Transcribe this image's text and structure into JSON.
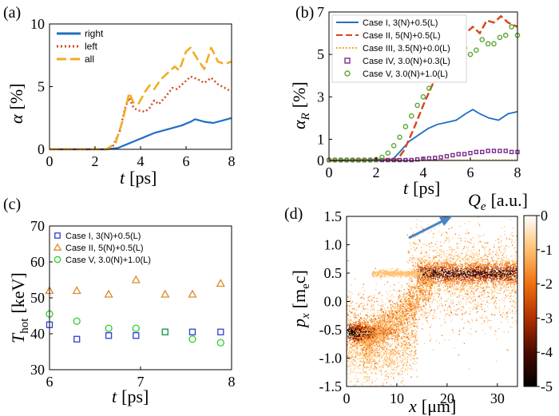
{
  "chart_data": [
    {
      "panel": "(a)",
      "type": "line",
      "xlabel_var": "t",
      "xlabel_unit": "[ps]",
      "ylabel_var": "α",
      "ylabel_unit": "[%]",
      "xlim": [
        0,
        8
      ],
      "ylim": [
        0,
        10
      ],
      "xticks": [
        "0",
        "2",
        "4",
        "6",
        "8"
      ],
      "yticks": [
        "0",
        "5",
        "10"
      ],
      "legend_position": "top-left",
      "series": [
        {
          "name": "right",
          "color": "#1f6fc1",
          "style": "solid",
          "points": [
            [
              0,
              0
            ],
            [
              2.5,
              0
            ],
            [
              3,
              0.1
            ],
            [
              3.4,
              0.4
            ],
            [
              3.8,
              0.7
            ],
            [
              4.2,
              1.0
            ],
            [
              4.6,
              1.3
            ],
            [
              5.0,
              1.5
            ],
            [
              5.4,
              1.7
            ],
            [
              5.8,
              1.9
            ],
            [
              6.2,
              2.2
            ],
            [
              6.4,
              2.4
            ],
            [
              6.8,
              2.2
            ],
            [
              7.2,
              2.1
            ],
            [
              7.6,
              2.3
            ],
            [
              8,
              2.5
            ]
          ]
        },
        {
          "name": "left",
          "color": "#d6461c",
          "style": "dotted",
          "points": [
            [
              0,
              0
            ],
            [
              2.5,
              0
            ],
            [
              2.8,
              0.3
            ],
            [
              3.1,
              1.5
            ],
            [
              3.3,
              3.2
            ],
            [
              3.5,
              4.1
            ],
            [
              3.7,
              3.3
            ],
            [
              3.9,
              3.1
            ],
            [
              4.2,
              3.0
            ],
            [
              4.4,
              3.3
            ],
            [
              4.6,
              3.9
            ],
            [
              4.8,
              3.6
            ],
            [
              5.1,
              4.2
            ],
            [
              5.4,
              4.9
            ],
            [
              5.6,
              4.8
            ],
            [
              5.9,
              5.3
            ],
            [
              6.2,
              5.8
            ],
            [
              6.5,
              5.6
            ],
            [
              6.8,
              5.3
            ],
            [
              7.1,
              5.7
            ],
            [
              7.4,
              5.2
            ],
            [
              7.7,
              4.9
            ],
            [
              8,
              4.6
            ]
          ]
        },
        {
          "name": "all",
          "color": "#f0ad24",
          "style": "dashed",
          "points": [
            [
              0,
              0
            ],
            [
              2.5,
              0
            ],
            [
              2.9,
              0.5
            ],
            [
              3.2,
              2.2
            ],
            [
              3.5,
              4.5
            ],
            [
              3.7,
              3.7
            ],
            [
              3.9,
              3.6
            ],
            [
              4.2,
              4.6
            ],
            [
              4.4,
              5.1
            ],
            [
              4.6,
              4.8
            ],
            [
              4.9,
              5.6
            ],
            [
              5.2,
              6.1
            ],
            [
              5.5,
              6.6
            ],
            [
              5.7,
              6.3
            ],
            [
              6.0,
              7.8
            ],
            [
              6.2,
              8.1
            ],
            [
              6.5,
              7.2
            ],
            [
              6.8,
              6.4
            ],
            [
              7.1,
              8.1
            ],
            [
              7.4,
              7.0
            ],
            [
              7.7,
              6.8
            ],
            [
              8,
              7.0
            ]
          ]
        }
      ]
    },
    {
      "panel": "(b)",
      "type": "line",
      "xlabel_var": "t",
      "xlabel_unit": "[ps]",
      "ylabel_var": "α",
      "ylabel_sub": "R",
      "ylabel_unit": "[%]",
      "xlim": [
        0,
        8
      ],
      "ylim": [
        0,
        7
      ],
      "xticks": [
        "0",
        "2",
        "4",
        "6",
        "8"
      ],
      "yticks": [
        "0",
        "1",
        "3",
        "5",
        "7"
      ],
      "legend_position": "top-left",
      "series": [
        {
          "name": "Case I, 3(N)+0.5(L)",
          "color": "#1f6fc1",
          "style": "solid",
          "points": [
            [
              0,
              0
            ],
            [
              2.7,
              0.05
            ],
            [
              3.0,
              0.4
            ],
            [
              3.4,
              0.9
            ],
            [
              3.8,
              1.2
            ],
            [
              4.2,
              1.5
            ],
            [
              4.6,
              1.7
            ],
            [
              5.0,
              1.8
            ],
            [
              5.4,
              1.9
            ],
            [
              5.8,
              2.2
            ],
            [
              6.1,
              2.4
            ],
            [
              6.4,
              2.2
            ],
            [
              6.8,
              2.0
            ],
            [
              7.2,
              1.9
            ],
            [
              7.6,
              2.2
            ],
            [
              8,
              2.3
            ]
          ]
        },
        {
          "name": "Case II, 5(N)+0.5(L)",
          "color": "#d6461c",
          "style": "dashed",
          "points": [
            [
              0,
              0
            ],
            [
              2.9,
              0.05
            ],
            [
              3.2,
              0.5
            ],
            [
              3.6,
              1.5
            ],
            [
              4.0,
              2.6
            ],
            [
              4.4,
              3.6
            ],
            [
              4.8,
              4.7
            ],
            [
              5.2,
              5.5
            ],
            [
              5.5,
              5.8
            ],
            [
              5.8,
              6.0
            ],
            [
              6.1,
              6.3
            ],
            [
              6.4,
              6.0
            ],
            [
              6.7,
              6.6
            ],
            [
              7.0,
              6.5
            ],
            [
              7.3,
              6.8
            ],
            [
              7.6,
              6.5
            ],
            [
              8,
              6.3
            ]
          ]
        },
        {
          "name": "Case III, 3.5(N)+0.0(L)",
          "color": "#f0ad24",
          "style": "dotted",
          "points": [
            [
              0,
              0
            ],
            [
              8,
              0.02
            ]
          ]
        },
        {
          "name": "Case IV, 3.0(N)+0.3(L)",
          "color": "#7b2c8f",
          "style": "square-markers",
          "points": [
            [
              0,
              0.02
            ],
            [
              0.25,
              0.02
            ],
            [
              0.5,
              0.02
            ],
            [
              0.75,
              0.02
            ],
            [
              1,
              0.02
            ],
            [
              1.25,
              0.02
            ],
            [
              1.5,
              0.02
            ],
            [
              1.75,
              0.02
            ],
            [
              2,
              0.02
            ],
            [
              2.25,
              0.02
            ],
            [
              2.5,
              0.02
            ],
            [
              2.75,
              0.02
            ],
            [
              3,
              0.02
            ],
            [
              3.25,
              0.02
            ],
            [
              3.5,
              0.02
            ],
            [
              3.75,
              0.05
            ],
            [
              4,
              0.08
            ],
            [
              4.25,
              0.1
            ],
            [
              4.5,
              0.12
            ],
            [
              4.75,
              0.15
            ],
            [
              5,
              0.2
            ],
            [
              5.25,
              0.25
            ],
            [
              5.5,
              0.3
            ],
            [
              5.75,
              0.3
            ],
            [
              6,
              0.35
            ],
            [
              6.25,
              0.4
            ],
            [
              6.5,
              0.4
            ],
            [
              6.75,
              0.45
            ],
            [
              7,
              0.45
            ],
            [
              7.25,
              0.45
            ],
            [
              7.5,
              0.45
            ],
            [
              7.75,
              0.4
            ],
            [
              8,
              0.4
            ]
          ]
        },
        {
          "name": "Case V, 3.0(N)+1.0(L)",
          "color": "#5aa632",
          "style": "circle-markers",
          "points": [
            [
              0,
              0.02
            ],
            [
              0.25,
              0.02
            ],
            [
              0.5,
              0.02
            ],
            [
              0.75,
              0.02
            ],
            [
              1,
              0.02
            ],
            [
              1.25,
              0.02
            ],
            [
              1.5,
              0.02
            ],
            [
              1.75,
              0.02
            ],
            [
              2,
              0.05
            ],
            [
              2.25,
              0.15
            ],
            [
              2.5,
              0.35
            ],
            [
              2.75,
              0.7
            ],
            [
              3,
              1.1
            ],
            [
              3.25,
              1.6
            ],
            [
              3.5,
              2.1
            ],
            [
              3.75,
              2.6
            ],
            [
              4,
              3.0
            ],
            [
              4.25,
              3.4
            ],
            [
              4.5,
              3.8
            ],
            [
              4.75,
              4.2
            ],
            [
              5,
              4.6
            ],
            [
              5.25,
              5.0
            ],
            [
              5.5,
              5.3
            ],
            [
              5.75,
              5.3
            ],
            [
              6,
              5.0
            ],
            [
              6.25,
              5.2
            ],
            [
              6.5,
              5.7
            ],
            [
              6.75,
              5.5
            ],
            [
              7,
              5.5
            ],
            [
              7.25,
              5.8
            ],
            [
              7.5,
              5.9
            ],
            [
              7.75,
              6.3
            ],
            [
              8,
              5.9
            ]
          ]
        }
      ]
    },
    {
      "panel": "(c)",
      "type": "scatter",
      "xlabel_var": "t",
      "xlabel_unit": "[ps]",
      "ylabel_var": "T",
      "ylabel_sub": "hot",
      "ylabel_unit": "[keV]",
      "xlim": [
        6,
        8
      ],
      "ylim": [
        30,
        70
      ],
      "xticks": [
        "6",
        "7",
        "8"
      ],
      "yticks": [
        "30",
        "40",
        "50",
        "60",
        "70"
      ],
      "legend_position": "top-left",
      "series": [
        {
          "name": "Case I, 3(N)+0.5(L)",
          "color": "#2e3fd6",
          "marker": "square",
          "points": [
            [
              6.0,
              42.5
            ],
            [
              6.3,
              38.5
            ],
            [
              6.65,
              39.5
            ],
            [
              6.95,
              39.5
            ],
            [
              7.27,
              40.5
            ],
            [
              7.57,
              40.5
            ],
            [
              7.88,
              40.5
            ]
          ]
        },
        {
          "name": "Case II, 5(N)+0.5(L)",
          "color": "#e08a2a",
          "marker": "triangle",
          "points": [
            [
              6.0,
              52
            ],
            [
              6.3,
              52
            ],
            [
              6.65,
              51
            ],
            [
              6.95,
              55
            ],
            [
              7.27,
              51
            ],
            [
              7.57,
              51
            ],
            [
              7.88,
              54
            ]
          ]
        },
        {
          "name": "Case V, 3.0(N)+1.0(L)",
          "color": "#2ccc2c",
          "marker": "circle",
          "points": [
            [
              6.0,
              45.5
            ],
            [
              6.3,
              43.5
            ],
            [
              6.65,
              41.5
            ],
            [
              6.95,
              41.5
            ],
            [
              7.27,
              40.5
            ],
            [
              7.57,
              38.5
            ],
            [
              7.88,
              37.5
            ]
          ]
        }
      ]
    },
    {
      "panel": "(d)",
      "type": "heatmap",
      "xlabel_var": "x",
      "xlabel_unit": "[μm]",
      "ylabel_var": "p",
      "ylabel_sub": "x",
      "ylabel_unit_pre": "[m",
      "ylabel_unit_sub": "e",
      "ylabel_unit_post": "c]",
      "xlim": [
        0,
        34
      ],
      "ylim": [
        -1.5,
        1.5
      ],
      "xticks": [
        "0",
        "10",
        "20",
        "30"
      ],
      "yticks": [
        "-1.5",
        "-1.0",
        "-0.5",
        "0.0",
        "0.5",
        "1.0",
        "1.5"
      ],
      "colorbar_label_var": "Q",
      "colorbar_label_sub": "e",
      "colorbar_label_unit": "[a.u.]",
      "colorbar_range": [
        -5,
        0
      ],
      "colorbar_ticks": [
        "0",
        "-1",
        "-2",
        "-3",
        "-4",
        "-5"
      ],
      "arrow_color": "#4a86c5"
    }
  ]
}
